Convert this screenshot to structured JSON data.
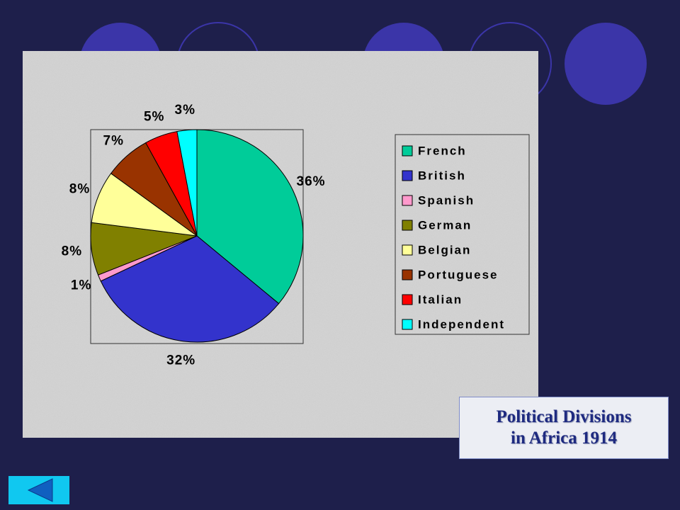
{
  "chart_data": {
    "type": "pie",
    "title": [
      "Political Divisions",
      "in Africa 1914"
    ],
    "categories": [
      "French",
      "British",
      "Spanish",
      "German",
      "Belgian",
      "Portuguese",
      "Italian",
      "Independent"
    ],
    "values": [
      36,
      32,
      1,
      8,
      8,
      7,
      5,
      3
    ],
    "value_labels": [
      "36%",
      "32%",
      "1%",
      "8%",
      "8%",
      "7%",
      "5%",
      "3%"
    ],
    "colors": [
      "#00cc99",
      "#3333cc",
      "#ff99cc",
      "#808000",
      "#ffff99",
      "#993300",
      "#ff0000",
      "#00ffff"
    ],
    "legend": "right"
  }
}
